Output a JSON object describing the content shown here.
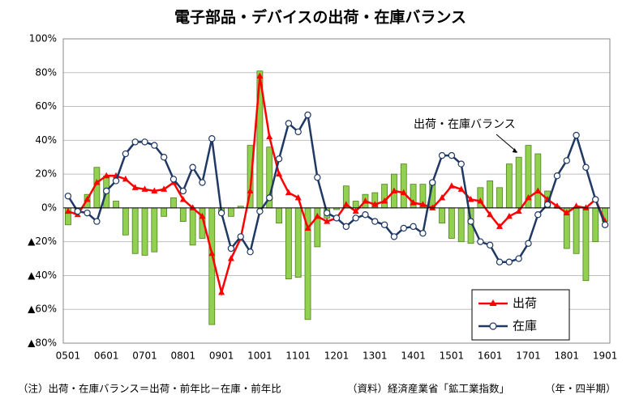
{
  "chart_data": {
    "type": "bar",
    "title": "電子部品・デバイスの出荷・在庫バランス",
    "categories": [
      "0501",
      null,
      null,
      null,
      "0601",
      null,
      null,
      null,
      "0701",
      null,
      null,
      null,
      "0801",
      null,
      null,
      null,
      "0901",
      null,
      null,
      null,
      "1001",
      null,
      null,
      null,
      "1101",
      null,
      null,
      null,
      "1201",
      null,
      null,
      null,
      "1301",
      null,
      null,
      null,
      "1401",
      null,
      null,
      null,
      "1501",
      null,
      null,
      null,
      "1601",
      null,
      null,
      null,
      "1701",
      null,
      null,
      null,
      "1801",
      null,
      null,
      null,
      "1901"
    ],
    "series": [
      {
        "name": "出荷・在庫バランス",
        "type": "bar",
        "color": "#92d050",
        "values": [
          -10,
          -3,
          8,
          24,
          19,
          4,
          -16,
          -27,
          -28,
          -26,
          -5,
          6,
          -8,
          -22,
          -18,
          -69,
          -3,
          -5,
          1,
          37,
          81,
          36,
          -9,
          -42,
          -41,
          -66,
          -23,
          -6,
          -1,
          13,
          4,
          8,
          9,
          14,
          20,
          26,
          14,
          14,
          16,
          -9,
          -18,
          -20,
          -21,
          12,
          16,
          12,
          26,
          30,
          37,
          32,
          10,
          1,
          -24,
          -27,
          -43,
          -20,
          -8
        ]
      },
      {
        "name": "出荷",
        "type": "line",
        "marker": "triangle",
        "color": "#ff0000",
        "values": [
          -2,
          -4,
          5,
          15,
          19,
          19,
          17,
          12,
          11,
          10,
          11,
          15,
          5,
          0,
          -5,
          -27,
          -50,
          -30,
          -18,
          10,
          78,
          42,
          20,
          9,
          6,
          -12,
          -5,
          -8,
          -6,
          2,
          -2,
          4,
          2,
          4,
          10,
          9,
          3,
          2,
          0,
          6,
          13,
          11,
          5,
          4,
          -4,
          -11,
          -5,
          -2,
          6,
          10,
          5,
          1,
          -3,
          1,
          0,
          5,
          -8
        ]
      },
      {
        "name": "在庫",
        "type": "line",
        "marker": "circle",
        "color": "#1f3864",
        "values": [
          7,
          -2,
          -3,
          -8,
          10,
          16,
          32,
          39,
          39,
          37,
          30,
          17,
          10,
          24,
          15,
          41,
          -3,
          -24,
          -17,
          -26,
          -2,
          6,
          29,
          50,
          45,
          55,
          18,
          -3,
          -6,
          -11,
          -6,
          -4,
          -8,
          -10,
          -17,
          -12,
          -11,
          -15,
          15,
          31,
          31,
          26,
          -8,
          -20,
          -22,
          -32,
          -32,
          -30,
          -21,
          -4,
          2,
          19,
          28,
          43,
          24,
          5,
          -10
        ]
      }
    ],
    "ylim": [
      -80,
      100
    ],
    "yticks": [
      {
        "value": -80,
        "label": "▲80%"
      },
      {
        "value": -60,
        "label": "▲60%"
      },
      {
        "value": -40,
        "label": "▲40%"
      },
      {
        "value": -20,
        "label": "▲20%"
      },
      {
        "value": 0,
        "label": "0%"
      },
      {
        "value": 20,
        "label": "20%"
      },
      {
        "value": 40,
        "label": "40%"
      },
      {
        "value": 60,
        "label": "60%"
      },
      {
        "value": 80,
        "label": "80%"
      },
      {
        "value": 100,
        "label": "100%"
      }
    ],
    "grid": true,
    "legend": "lower right",
    "notes": [
      "（注）出荷・在庫バランス＝出荷・前年比－在庫・前年比",
      "（資料）経済産業省「鉱工業指数」",
      "（年・四半期）"
    ]
  }
}
